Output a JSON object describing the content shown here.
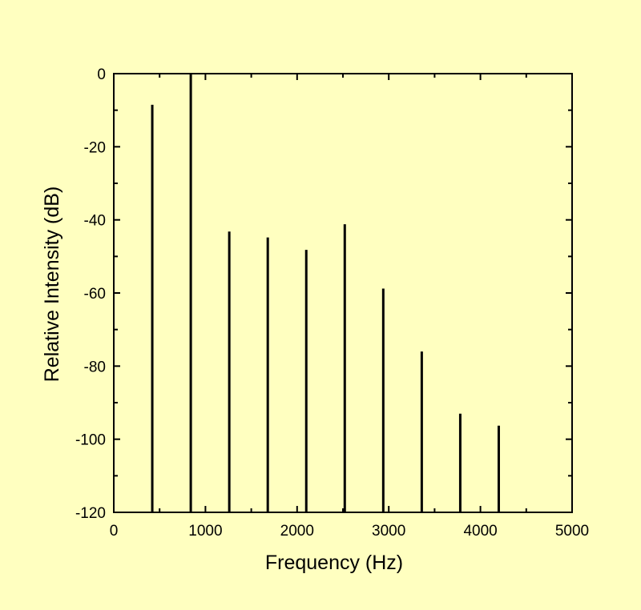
{
  "chart_data": {
    "type": "bar",
    "title": "",
    "xlabel": "Frequency (Hz)",
    "ylabel": "Relative Intensity (dB)",
    "xlim": [
      0,
      5000
    ],
    "ylim": [
      -120,
      0
    ],
    "x_ticks": [
      0,
      1000,
      2000,
      3000,
      4000,
      5000
    ],
    "y_ticks": [
      0,
      -20,
      -40,
      -60,
      -80,
      -100,
      -120
    ],
    "x_tick_labels": [
      "0",
      "1000",
      "2000",
      "3000",
      "4000",
      "5000"
    ],
    "y_tick_labels": [
      "0",
      "-20",
      "-40",
      "-60",
      "-80",
      "-100",
      "-120"
    ],
    "x": [
      420,
      840,
      1260,
      1680,
      2100,
      2520,
      2940,
      3360,
      3780,
      4200
    ],
    "values": [
      -8.5,
      0,
      -43.2,
      -44.8,
      -48.2,
      -41.2,
      -58.8,
      -76,
      -93,
      -96.3
    ],
    "grid": false,
    "legend": "none"
  },
  "colors": {
    "background": "#FFFFC0",
    "axes": "#000000",
    "stems": "#000000"
  }
}
